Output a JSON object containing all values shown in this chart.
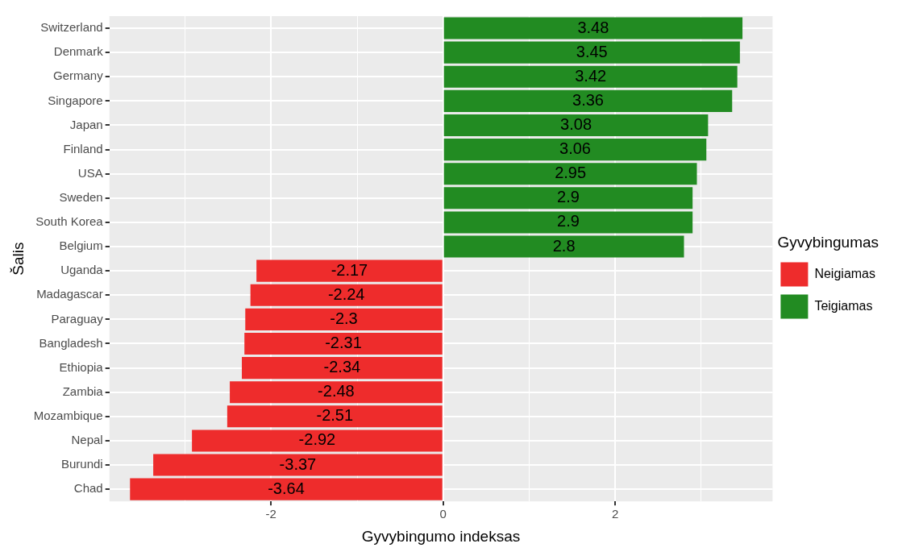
{
  "chart_data": {
    "type": "bar",
    "orientation": "horizontal",
    "stacked": true,
    "xlabel": "Gyvybingumo indeksas",
    "ylabel": "Šalis",
    "legend_title": "Gyvybingumas",
    "legend": "right",
    "grid": true,
    "data_labels": true,
    "categories": [
      "Switzerland",
      "Denmark",
      "Germany",
      "Singapore",
      "Japan",
      "Finland",
      "USA",
      "Sweden",
      "South Korea",
      "Belgium",
      "Uganda",
      "Madagascar",
      "Paraguay",
      "Bangladesh",
      "Ethiopia",
      "Zambia",
      "Mozambique",
      "Nepal",
      "Burundi",
      "Chad"
    ],
    "xlim": [
      -3.88,
      3.83
    ],
    "xticks": [
      {
        "value": -3,
        "label": null
      },
      -2,
      {
        "value": -1,
        "label": null
      },
      0,
      {
        "value": 1,
        "label": null
      },
      2,
      {
        "value": 3,
        "label": null
      }
    ],
    "series": [
      {
        "name": "Neigiamas",
        "color": "#ee2c2c",
        "values": [
          null,
          null,
          null,
          null,
          null,
          null,
          null,
          null,
          null,
          null,
          -2.17,
          -2.24,
          -2.3,
          -2.31,
          -2.34,
          -2.48,
          -2.51,
          -2.92,
          -3.37,
          -3.64
        ]
      },
      {
        "name": "Teigiamas",
        "color": "#228b22",
        "values": [
          3.48,
          3.45,
          3.42,
          3.36,
          3.08,
          3.06,
          2.95,
          2.9,
          2.9,
          2.8,
          null,
          null,
          null,
          null,
          null,
          null,
          null,
          null,
          null,
          null
        ]
      }
    ]
  }
}
